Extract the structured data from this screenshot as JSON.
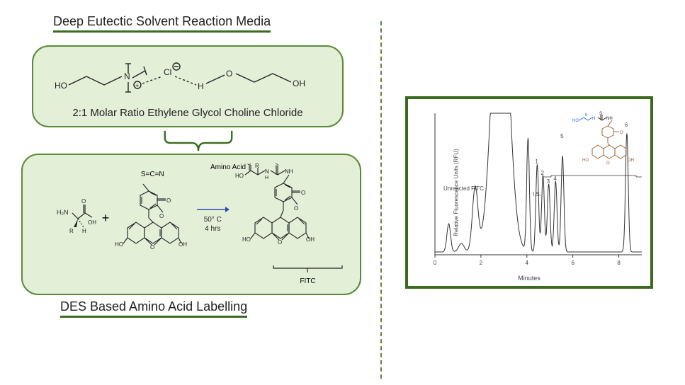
{
  "left": {
    "title_top": "Deep Eutectic Solvent Reaction Media",
    "des_caption": "2:1 Molar Ratio Ethylene Glycol Choline Chloride",
    "title_bottom": "DES Based Amino Acid Labelling",
    "reaction": {
      "amino_acid_label": "Amino Acid",
      "fitc_label": "FITC",
      "plus": "+",
      "arrow_cond1": "50° C",
      "arrow_cond2": "4 hrs",
      "scn_label": "S=C=N"
    }
  },
  "chromatogram": {
    "ylabel": "Relative Fluorescence Units (RFU)",
    "xlabel": "Minutes",
    "xticks": [
      "0",
      "2",
      "4",
      "6",
      "8"
    ],
    "unreacted_label": "Unreacted FITC",
    "is_label": "I.S.",
    "peak_labels": [
      "1",
      "2",
      "3",
      "4",
      "5",
      "6"
    ],
    "peak_x": [
      4.45,
      4.7,
      4.95,
      5.25,
      5.55,
      8.35
    ],
    "peak_y": [
      62,
      54,
      48,
      50,
      68,
      84
    ],
    "is_x": 4.05,
    "is_y": 80,
    "fitc_peak_x": 2.85,
    "inset_struct_color_aa": "#2a6bc4",
    "inset_struct_color_fitc": "#9a5a2a"
  },
  "colors": {
    "dark_green": "#3a6b1f",
    "mid_green": "#5a8a3a",
    "box_fill": "#e4efd8",
    "line": "#222222"
  }
}
